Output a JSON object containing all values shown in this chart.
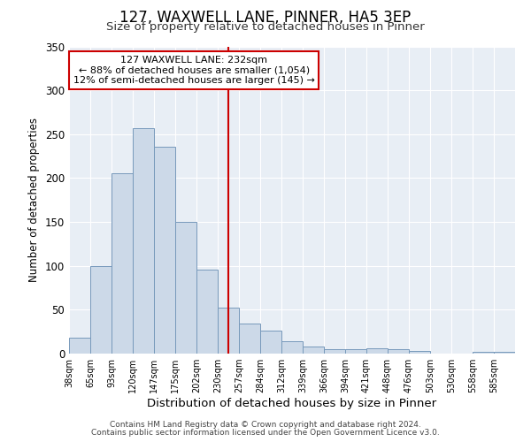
{
  "title": "127, WAXWELL LANE, PINNER, HA5 3EP",
  "subtitle": "Size of property relative to detached houses in Pinner",
  "xlabel": "Distribution of detached houses by size in Pinner",
  "ylabel": "Number of detached properties",
  "footnote1": "Contains HM Land Registry data © Crown copyright and database right 2024.",
  "footnote2": "Contains public sector information licensed under the Open Government Licence v3.0.",
  "bin_labels": [
    "38sqm",
    "65sqm",
    "93sqm",
    "120sqm",
    "147sqm",
    "175sqm",
    "202sqm",
    "230sqm",
    "257sqm",
    "284sqm",
    "312sqm",
    "339sqm",
    "366sqm",
    "394sqm",
    "421sqm",
    "448sqm",
    "476sqm",
    "503sqm",
    "530sqm",
    "558sqm",
    "585sqm"
  ],
  "bar_heights": [
    18,
    100,
    205,
    257,
    236,
    150,
    96,
    52,
    34,
    26,
    14,
    8,
    5,
    5,
    6,
    5,
    3,
    0,
    0,
    2,
    2
  ],
  "bar_color": "#ccd9e8",
  "bar_edge_color": "#7799bb",
  "vline_color": "#cc0000",
  "annotation_title": "127 WAXWELL LANE: 232sqm",
  "annotation_line1": "← 88% of detached houses are smaller (1,054)",
  "annotation_line2": "12% of semi-detached houses are larger (145) →",
  "annotation_box_color": "#cc0000",
  "ylim": [
    0,
    350
  ],
  "yticks": [
    0,
    50,
    100,
    150,
    200,
    250,
    300,
    350
  ],
  "background_color": "#ffffff",
  "plot_bg_color": "#e8eef5",
  "grid_color": "#ffffff",
  "title_fontsize": 12,
  "subtitle_fontsize": 9.5,
  "xlabel_fontsize": 9.5,
  "ylabel_fontsize": 8.5,
  "footnote_fontsize": 6.5
}
